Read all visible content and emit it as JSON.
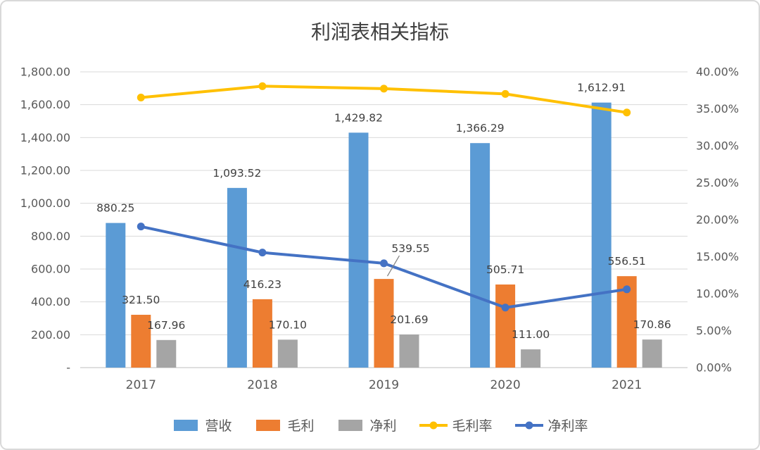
{
  "chart_data": {
    "type": "combo-bar-line",
    "title": "利润表相关指标",
    "categories": [
      "2017",
      "2018",
      "2019",
      "2020",
      "2021"
    ],
    "bar_series": [
      {
        "name": "营收",
        "color": "#5B9BD5",
        "values": [
          880.25,
          1093.52,
          1429.82,
          1366.29,
          1612.91
        ],
        "labels": [
          "880.25",
          "1,093.52",
          "1,429.82",
          "1,366.29",
          "1,612.91"
        ]
      },
      {
        "name": "毛利",
        "color": "#ED7D31",
        "values": [
          321.5,
          416.23,
          539.55,
          505.71,
          556.51
        ],
        "labels": [
          "321.50",
          "416.23",
          "539.55",
          "505.71",
          "556.51"
        ]
      },
      {
        "name": "净利",
        "color": "#A5A5A5",
        "values": [
          167.96,
          170.1,
          201.69,
          111.0,
          170.86
        ],
        "labels": [
          "167.96",
          "170.10",
          "201.69",
          "111.00",
          "170.86"
        ]
      }
    ],
    "line_series": [
      {
        "name": "毛利率",
        "color": "#FFC000",
        "axis": "right",
        "values": [
          36.52,
          38.06,
          37.73,
          37.01,
          34.5
        ]
      },
      {
        "name": "净利率",
        "color": "#4472C4",
        "axis": "right",
        "values": [
          19.08,
          15.56,
          14.11,
          8.12,
          10.59
        ]
      }
    ],
    "left_axis": {
      "min": 0,
      "max": 1800,
      "ticks": [
        "-",
        "200.00",
        "400.00",
        "600.00",
        "800.00",
        "1,000.00",
        "1,200.00",
        "1,400.00",
        "1,600.00",
        "1,800.00"
      ]
    },
    "right_axis": {
      "min": 0,
      "max": 40,
      "ticks": [
        "0.00%",
        "5.00%",
        "10.00%",
        "15.00%",
        "20.00%",
        "25.00%",
        "30.00%",
        "35.00%",
        "40.00%"
      ]
    },
    "legend": [
      "营收",
      "毛利",
      "净利",
      "毛利率",
      "净利率"
    ],
    "grid": true,
    "legend_position": "bottom",
    "colors": {
      "gridline": "#d9d9d9",
      "baseline": "#bfbfbf",
      "axis_text": "#595959",
      "label_text": "#404040"
    }
  }
}
